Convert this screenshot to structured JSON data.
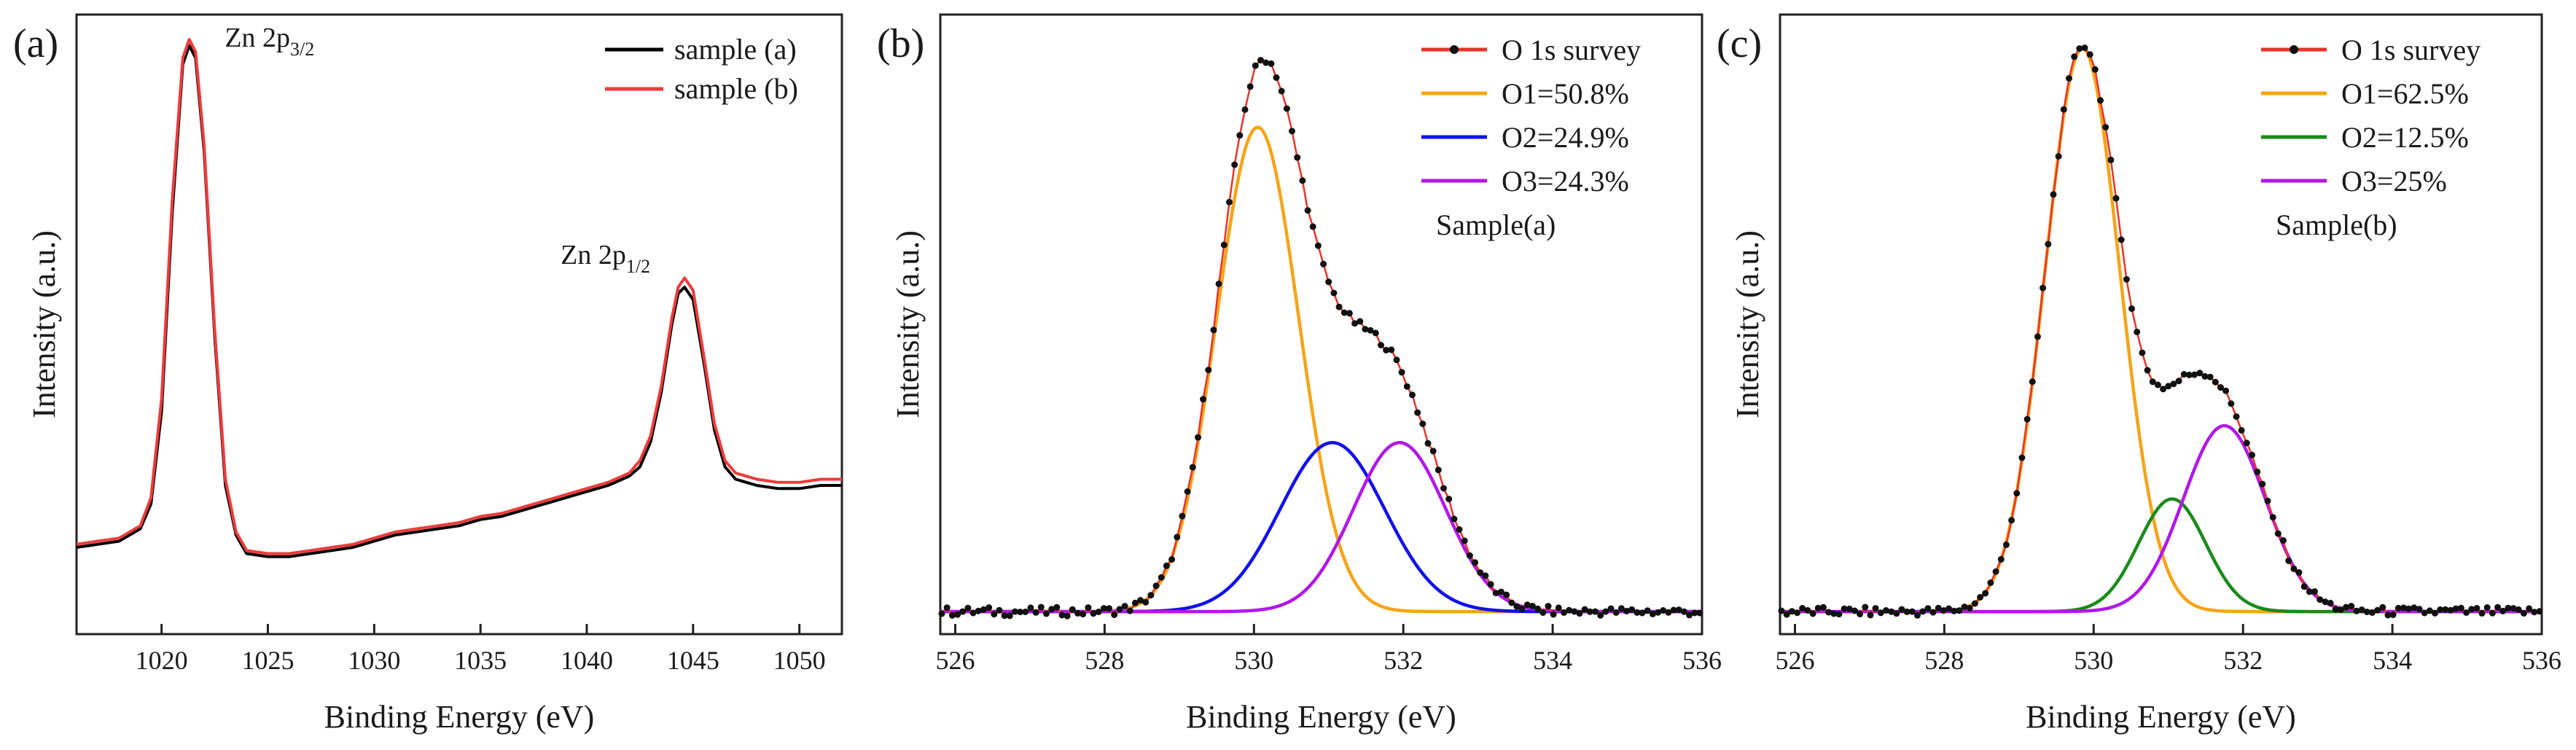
{
  "chart_data": [
    {
      "type": "line",
      "panel": "(a)",
      "title": "",
      "xlabel": "Binding Energy (eV)",
      "ylabel": "Intensity (a.u.)",
      "xlim": [
        1016,
        1052
      ],
      "ylim": [
        0,
        100
      ],
      "xticks": [
        1020,
        1025,
        1030,
        1035,
        1040,
        1045,
        1050
      ],
      "xtick_labels": [
        "1020",
        "1025",
        "1030",
        "1035",
        "1040",
        "1045",
        "1050"
      ],
      "legend_position": "top-right",
      "legend": [
        "sample (a)",
        "sample (b)"
      ],
      "series": [
        {
          "name": "sample (a)",
          "color": "#000000",
          "x": [
            1016,
            1017,
            1018,
            1019,
            1019.5,
            1020,
            1020.5,
            1021,
            1021.3,
            1021.6,
            1022,
            1022.5,
            1023,
            1023.5,
            1024,
            1025,
            1026,
            1027,
            1028,
            1029,
            1030,
            1031,
            1032,
            1033,
            1034,
            1035,
            1036,
            1037,
            1038,
            1039,
            1040,
            1041,
            1042,
            1042.5,
            1043,
            1043.5,
            1044,
            1044.3,
            1044.6,
            1045,
            1045.5,
            1046,
            1046.5,
            1047,
            1048,
            1049,
            1050,
            1051,
            1052
          ],
          "y": [
            14,
            14.5,
            15,
            17,
            21,
            36,
            68,
            92,
            95,
            93,
            78,
            48,
            24,
            16,
            13,
            12.5,
            12.5,
            13,
            13.5,
            14,
            15,
            16,
            16.5,
            17,
            17.5,
            18.5,
            19,
            20,
            21,
            22,
            23,
            24,
            25.5,
            27,
            31,
            39,
            50,
            55,
            56,
            54,
            44,
            33,
            27,
            25,
            24,
            23.5,
            23.5,
            24,
            24
          ]
        },
        {
          "name": "sample (b)",
          "color": "#ee3b3b",
          "x": [
            1016,
            1017,
            1018,
            1019,
            1019.5,
            1020,
            1020.5,
            1021,
            1021.3,
            1021.6,
            1022,
            1022.5,
            1023,
            1023.5,
            1024,
            1025,
            1026,
            1027,
            1028,
            1029,
            1030,
            1031,
            1032,
            1033,
            1034,
            1035,
            1036,
            1037,
            1038,
            1039,
            1040,
            1041,
            1042,
            1042.5,
            1043,
            1043.5,
            1044,
            1044.3,
            1044.6,
            1045,
            1045.5,
            1046,
            1046.5,
            1047,
            1048,
            1049,
            1050,
            1051,
            1052
          ],
          "y": [
            14.5,
            15,
            15.5,
            17.5,
            22,
            38,
            70,
            93,
            96,
            94,
            79,
            49,
            25,
            16.5,
            13.5,
            13,
            13,
            13.5,
            14,
            14.5,
            15.5,
            16.5,
            17,
            17.5,
            18,
            19,
            19.5,
            20.5,
            21.5,
            22.5,
            23.5,
            24.5,
            26,
            28,
            32,
            40,
            51,
            56,
            57.5,
            55.5,
            45,
            34,
            28,
            26,
            25,
            24.5,
            24.5,
            25,
            25
          ]
        }
      ],
      "annotations": [
        {
          "text": "Zn 2p",
          "sub": "3/2",
          "x": 1021.6,
          "y": 96
        },
        {
          "text": "Zn 2p",
          "sub": "1/2",
          "x": 1044.6,
          "y": 58
        }
      ]
    },
    {
      "type": "line",
      "panel": "(b)",
      "title": "",
      "xlabel": "Binding Energy (eV)",
      "ylabel": "Intensity (a.u.)",
      "xlim": [
        525.8,
        536
      ],
      "ylim": [
        0,
        110
      ],
      "xticks": [
        526,
        528,
        530,
        532,
        534,
        536
      ],
      "xtick_labels": [
        "526",
        "528",
        "530",
        "532",
        "534",
        "536"
      ],
      "legend_position": "top-right",
      "legend": [
        "O 1s survey",
        "O1=50.8%",
        "O2=24.9%",
        "O3=24.3%"
      ],
      "sample_label": "Sample(a)",
      "baseline": 4,
      "survey": {
        "name": "O 1s survey",
        "color": "#e8342a",
        "marker_color": "#111111"
      },
      "components": [
        {
          "name": "O1=50.8%",
          "color": "#f5a418",
          "center": 530.05,
          "height": 86,
          "sigma": 0.55
        },
        {
          "name": "O2=24.9%",
          "color": "#1010ee",
          "center": 531.05,
          "height": 30,
          "sigma": 0.7
        },
        {
          "name": "O3=24.3%",
          "color": "#b018e8",
          "center": 531.95,
          "height": 30,
          "sigma": 0.62
        }
      ]
    },
    {
      "type": "line",
      "panel": "(c)",
      "title": "",
      "xlabel": "Binding Energy (eV)",
      "ylabel": "Intensity (a.u.)",
      "xlim": [
        525.8,
        536
      ],
      "ylim": [
        0,
        110
      ],
      "xticks": [
        526,
        528,
        530,
        532,
        534,
        536
      ],
      "xtick_labels": [
        "526",
        "528",
        "530",
        "532",
        "534",
        "536"
      ],
      "legend_position": "top-right",
      "legend": [
        "O 1s survey",
        "O1=62.5%",
        "O2=12.5%",
        "O3=25%"
      ],
      "sample_label": "Sample(b)",
      "baseline": 4,
      "survey": {
        "name": "O 1s survey",
        "color": "#e8342a",
        "marker_color": "#111111"
      },
      "components": [
        {
          "name": "O1=62.5%",
          "color": "#f5a418",
          "center": 529.85,
          "height": 100,
          "sigma": 0.5
        },
        {
          "name": "O2=12.5%",
          "color": "#1a8a1a",
          "center": 531.05,
          "height": 20,
          "sigma": 0.45
        },
        {
          "name": "O3=25%",
          "color": "#b018e8",
          "center": 531.75,
          "height": 33,
          "sigma": 0.55
        }
      ]
    }
  ]
}
